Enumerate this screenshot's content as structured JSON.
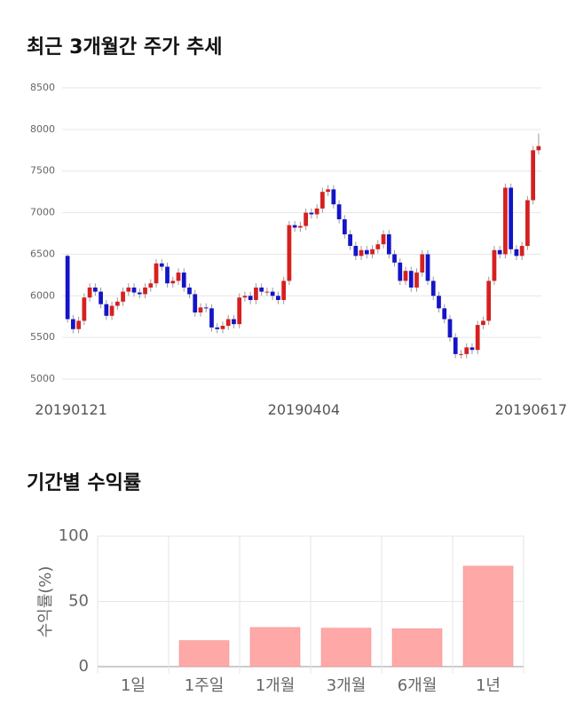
{
  "chart_data": [
    {
      "type": "candlestick",
      "title": "최근 3개월간 주가 추세",
      "categories": [
        "20190121",
        null,
        null,
        null,
        null,
        null,
        null,
        null,
        null,
        null,
        null,
        null,
        null,
        null,
        null,
        null,
        null,
        null,
        null,
        null,
        null,
        null,
        null,
        null,
        null,
        null,
        null,
        null,
        null,
        null,
        null,
        null,
        null,
        null,
        null,
        null,
        null,
        null,
        null,
        null,
        null,
        null,
        "20190404",
        null,
        null,
        null,
        null,
        null,
        null,
        null,
        null,
        null,
        null,
        null,
        null,
        null,
        null,
        null,
        null,
        null,
        null,
        null,
        null,
        null,
        null,
        null,
        null,
        null,
        null,
        null,
        null,
        null,
        null,
        null,
        null,
        null,
        null,
        null,
        null,
        null,
        null,
        null,
        null,
        "20190617",
        null,
        null
      ],
      "ohlc": [
        [
          6480,
          6500,
          5680,
          5720
        ],
        [
          5720,
          5770,
          5550,
          5600
        ],
        [
          5600,
          5750,
          5550,
          5700
        ],
        [
          5700,
          6030,
          5650,
          5980
        ],
        [
          5980,
          6150,
          5930,
          6100
        ],
        [
          6100,
          6150,
          6000,
          6050
        ],
        [
          6050,
          6100,
          5850,
          5900
        ],
        [
          5900,
          5950,
          5710,
          5760
        ],
        [
          5760,
          5930,
          5710,
          5880
        ],
        [
          5880,
          5980,
          5830,
          5930
        ],
        [
          5930,
          6100,
          5880,
          6050
        ],
        [
          6050,
          6150,
          6000,
          6100
        ],
        [
          6100,
          6150,
          5990,
          6040
        ],
        [
          6040,
          6090,
          5970,
          6020
        ],
        [
          6020,
          6150,
          5970,
          6100
        ],
        [
          6100,
          6200,
          6050,
          6150
        ],
        [
          6150,
          6440,
          6100,
          6390
        ],
        [
          6390,
          6440,
          6300,
          6350
        ],
        [
          6350,
          6400,
          6100,
          6150
        ],
        [
          6150,
          6230,
          6100,
          6180
        ],
        [
          6180,
          6330,
          6130,
          6280
        ],
        [
          6280,
          6330,
          6050,
          6100
        ],
        [
          6100,
          6150,
          5970,
          6020
        ],
        [
          6020,
          6070,
          5750,
          5800
        ],
        [
          5800,
          5910,
          5750,
          5860
        ],
        [
          5860,
          5910,
          5800,
          5850
        ],
        [
          5850,
          5900,
          5570,
          5620
        ],
        [
          5620,
          5670,
          5550,
          5600
        ],
        [
          5600,
          5690,
          5550,
          5640
        ],
        [
          5640,
          5770,
          5590,
          5720
        ],
        [
          5720,
          5770,
          5610,
          5660
        ],
        [
          5660,
          6030,
          5610,
          5980
        ],
        [
          5980,
          6050,
          5930,
          6000
        ],
        [
          6000,
          6050,
          5900,
          5950
        ],
        [
          5950,
          6150,
          5900,
          6100
        ],
        [
          6100,
          6150,
          6000,
          6050
        ],
        [
          6050,
          6100,
          6000,
          6050
        ],
        [
          6050,
          6100,
          5950,
          6000
        ],
        [
          6000,
          6050,
          5900,
          5950
        ],
        [
          5950,
          6230,
          5900,
          6180
        ],
        [
          6180,
          6900,
          6130,
          6850
        ],
        [
          6850,
          6900,
          6770,
          6820
        ],
        [
          6820,
          6890,
          6770,
          6840
        ],
        [
          6840,
          7050,
          6790,
          7000
        ],
        [
          7000,
          7050,
          6930,
          6980
        ],
        [
          6980,
          7100,
          6930,
          7050
        ],
        [
          7050,
          7300,
          7000,
          7250
        ],
        [
          7250,
          7330,
          7200,
          7280
        ],
        [
          7280,
          7330,
          7050,
          7100
        ],
        [
          7100,
          7150,
          6870,
          6920
        ],
        [
          6920,
          6970,
          6690,
          6740
        ],
        [
          6740,
          6790,
          6550,
          6600
        ],
        [
          6600,
          6650,
          6430,
          6480
        ],
        [
          6480,
          6600,
          6430,
          6550
        ],
        [
          6550,
          6600,
          6450,
          6500
        ],
        [
          6500,
          6610,
          6450,
          6560
        ],
        [
          6560,
          6670,
          6510,
          6620
        ],
        [
          6620,
          6790,
          6570,
          6740
        ],
        [
          6740,
          6790,
          6450,
          6500
        ],
        [
          6500,
          6550,
          6350,
          6400
        ],
        [
          6400,
          6450,
          6130,
          6180
        ],
        [
          6180,
          6350,
          6130,
          6300
        ],
        [
          6300,
          6350,
          6050,
          6100
        ],
        [
          6100,
          6330,
          6050,
          6280
        ],
        [
          6280,
          6550,
          6230,
          6500
        ],
        [
          6500,
          6550,
          6130,
          6180
        ],
        [
          6180,
          6230,
          5950,
          6000
        ],
        [
          6000,
          6050,
          5800,
          5850
        ],
        [
          5850,
          5900,
          5670,
          5720
        ],
        [
          5720,
          5770,
          5450,
          5500
        ],
        [
          5500,
          5550,
          5250,
          5300
        ],
        [
          5300,
          5350,
          5250,
          5300
        ],
        [
          5300,
          5430,
          5250,
          5380
        ],
        [
          5380,
          5430,
          5300,
          5350
        ],
        [
          5350,
          5700,
          5300,
          5650
        ],
        [
          5650,
          5750,
          5600,
          5700
        ],
        [
          5700,
          6230,
          5650,
          6180
        ],
        [
          6180,
          6600,
          6130,
          6550
        ],
        [
          6550,
          6600,
          6450,
          6500
        ],
        [
          6500,
          7350,
          6450,
          7300
        ],
        [
          7300,
          7350,
          6510,
          6560
        ],
        [
          6560,
          6610,
          6430,
          6480
        ],
        [
          6480,
          6650,
          6430,
          6600
        ],
        [
          6600,
          7200,
          6550,
          7150
        ],
        [
          7150,
          7800,
          7100,
          7750
        ],
        [
          7750,
          7950,
          7700,
          7800
        ]
      ],
      "up_color": "#d62020",
      "down_color": "#1414c8",
      "ylim": [
        5000,
        8500
      ],
      "yticks": [
        5000,
        5500,
        6000,
        6500,
        7000,
        7500,
        8000,
        8500
      ],
      "grid": true
    },
    {
      "type": "bar",
      "title": "기간별 수익률",
      "y_label": "수익률(%)",
      "categories": [
        "1일",
        "1주일",
        "1개월",
        "3개월",
        "6개월",
        "1년"
      ],
      "values": [
        0,
        20,
        30,
        29.5,
        29,
        77
      ],
      "color": "#ffa8a8",
      "ylim": [
        0,
        100
      ],
      "yticks": [
        0,
        50,
        100
      ],
      "grid": true
    }
  ]
}
